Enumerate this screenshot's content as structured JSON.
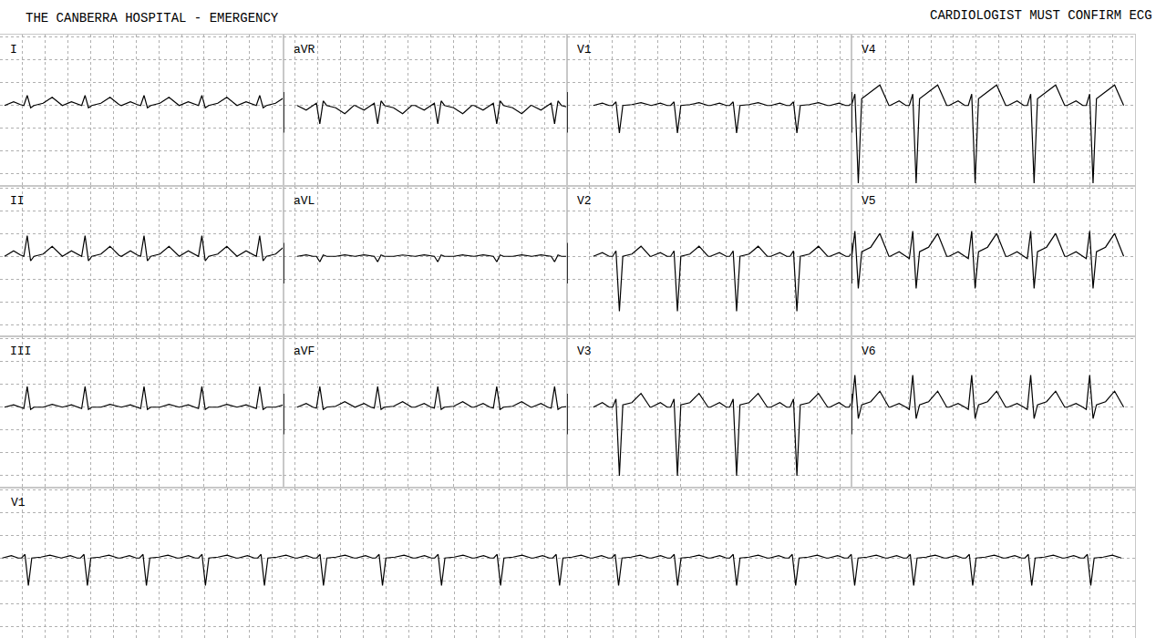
{
  "chart_data": {
    "type": "line",
    "title": "THE CANBERRA HOSPITAL - EMERGENCY",
    "annotations": [
      "CARDIOLOGIST MUST CONFIRM ECG"
    ],
    "color": "#000000",
    "grid": true,
    "tick_labels": false,
    "ylim": [
      -1.75,
      1.55
    ],
    "yticks": [
      -1.5,
      -1,
      -0.5,
      0,
      0.5,
      1,
      1.5
    ],
    "xticks": [
      0,
      0.2,
      0.4,
      0.6,
      0.8,
      1,
      1.2,
      1.4,
      1.6,
      1.8,
      2,
      2.2,
      2.4,
      2.6,
      2.8,
      3,
      3.2,
      3.4,
      3.6,
      3.8,
      4,
      4.2,
      4.4,
      4.6,
      4.8,
      5,
      5.2,
      5.4,
      5.6,
      5.8,
      6,
      6.2,
      6.4,
      6.6,
      6.8,
      7,
      7.2,
      7.4,
      7.6,
      7.8,
      8,
      8.2,
      8.4,
      8.6,
      8.8,
      9,
      9.2,
      9.4,
      9.6,
      9.8,
      10
    ],
    "beat_dt": [
      -0.2,
      -0.12,
      -0.06,
      -0.03,
      0,
      0.03,
      0.06,
      0.14,
      0.22,
      0.3
    ],
    "series": [
      {
        "name": "I",
        "xlim": [
          0,
          2.5
        ],
        "beats": [
          0.24,
          0.75,
          1.27,
          1.78,
          2.29
        ],
        "mv": [
          0,
          0.08,
          0.02,
          0,
          0.22,
          -0.05,
          0,
          0.05,
          0.18,
          0.02
        ]
      },
      {
        "name": "II",
        "xlim": [
          0,
          2.5
        ],
        "beats": [
          0.24,
          0.75,
          1.27,
          1.78,
          2.29
        ],
        "mv": [
          0,
          0.12,
          0.03,
          0,
          0.45,
          -0.1,
          0,
          0.05,
          0.22,
          0.02
        ]
      },
      {
        "name": "III",
        "xlim": [
          0,
          2.5
        ],
        "beats": [
          0.24,
          0.75,
          1.27,
          1.78,
          2.29
        ],
        "mv": [
          0,
          0.05,
          0,
          -0.03,
          0.45,
          -0.05,
          0,
          0,
          0.06,
          0
        ]
      },
      {
        "name": "aVR",
        "xlim": [
          2.5,
          5
        ],
        "beats": [
          2.82,
          3.33,
          3.86,
          4.38,
          4.89
        ],
        "mv": [
          0,
          -0.1,
          0,
          0.05,
          -0.4,
          0.1,
          0,
          -0.05,
          -0.18,
          0
        ]
      },
      {
        "name": "aVL",
        "xlim": [
          2.5,
          5
        ],
        "beats": [
          2.82,
          3.33,
          3.86,
          4.38,
          4.89
        ],
        "mv": [
          0,
          0.03,
          0,
          0,
          -0.12,
          0.03,
          0,
          0,
          0.03,
          0
        ]
      },
      {
        "name": "aVF",
        "xlim": [
          2.5,
          5
        ],
        "beats": [
          2.82,
          3.33,
          3.86,
          4.38,
          4.89
        ],
        "mv": [
          0,
          0.08,
          0,
          -0.02,
          0.45,
          -0.05,
          0,
          0.02,
          0.12,
          0
        ]
      },
      {
        "name": "V1",
        "xlim": [
          5,
          7.5
        ],
        "beats": [
          5.43,
          5.94,
          6.46,
          6.99,
          7.51
        ],
        "mv": [
          0,
          0.05,
          0,
          0,
          0.08,
          -0.6,
          0,
          0.02,
          0.06,
          0
        ]
      },
      {
        "name": "V2",
        "xlim": [
          5,
          7.5
        ],
        "beats": [
          5.43,
          5.94,
          6.46,
          6.99,
          7.51
        ],
        "mv": [
          0,
          0.08,
          0,
          0,
          0.12,
          -1.2,
          0,
          0.05,
          0.22,
          0
        ]
      },
      {
        "name": "V3",
        "xlim": [
          5,
          7.5
        ],
        "beats": [
          5.43,
          5.94,
          6.46,
          6.99,
          7.51
        ],
        "mv": [
          0,
          0.1,
          0,
          0,
          0.18,
          -1.5,
          0.05,
          0.1,
          0.3,
          0
        ]
      },
      {
        "name": "V4",
        "xlim": [
          7.5,
          10
        ],
        "beats": [
          7.53,
          8.04,
          8.56,
          9.08,
          9.6
        ],
        "mv": [
          0,
          0.1,
          0,
          0,
          0.25,
          -1.7,
          0.15,
          0.3,
          0.45,
          0
        ]
      },
      {
        "name": "V5",
        "xlim": [
          7.5,
          10
        ],
        "beats": [
          7.53,
          8.04,
          8.56,
          9.08,
          9.6
        ],
        "mv": [
          0,
          0.1,
          0,
          -0.05,
          0.55,
          -0.7,
          0.1,
          0.2,
          0.5,
          0
        ]
      },
      {
        "name": "V6",
        "xlim": [
          7.5,
          10
        ],
        "beats": [
          7.53,
          8.04,
          8.56,
          9.08,
          9.6
        ],
        "mv": [
          0,
          0.08,
          0,
          -0.05,
          0.7,
          -0.25,
          0.05,
          0.12,
          0.35,
          0
        ]
      },
      {
        "name": "V1",
        "xlim": [
          0,
          10
        ],
        "beats": [
          0.22,
          0.74,
          1.26,
          1.78,
          2.3,
          2.82,
          3.34,
          3.86,
          4.38,
          4.9,
          5.42,
          5.94,
          6.46,
          6.98,
          7.5,
          8.02,
          8.54,
          9.06,
          9.58
        ],
        "mv": [
          0,
          0.05,
          0,
          0,
          0.08,
          -0.6,
          0,
          0.02,
          0.06,
          0
        ]
      }
    ]
  }
}
